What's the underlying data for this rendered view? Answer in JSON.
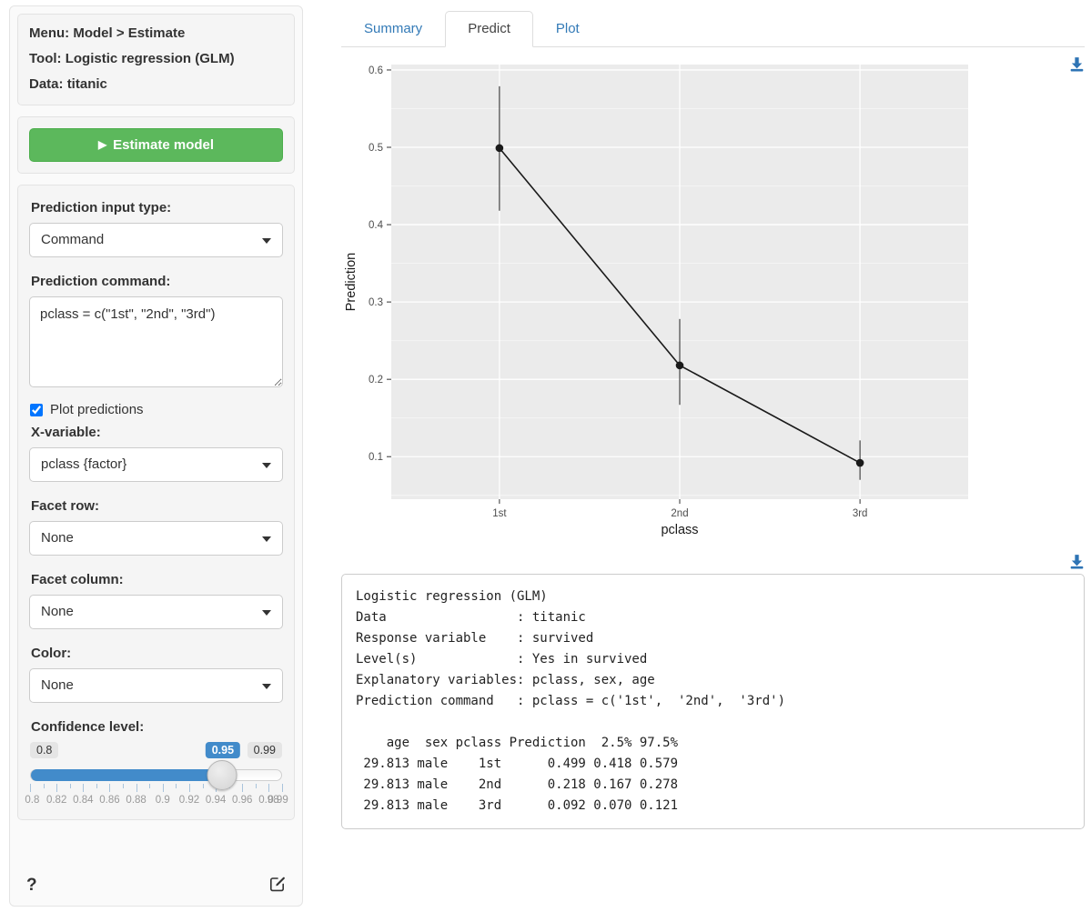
{
  "sidebar": {
    "info": [
      {
        "label": "Menu:",
        "value": "Model > Estimate"
      },
      {
        "label": "Tool:",
        "value": "Logistic regression (GLM)"
      },
      {
        "label": "Data:",
        "value": "titanic"
      }
    ],
    "estimate_button": {
      "label": "Estimate model",
      "icon": "play-icon"
    },
    "prediction_input_type": {
      "label": "Prediction input type:",
      "value": "Command"
    },
    "prediction_command": {
      "label": "Prediction command:",
      "value": "pclass = c(\"1st\", \"2nd\", \"3rd\")"
    },
    "plot_predictions": {
      "label": "Plot predictions",
      "checked": true
    },
    "x_variable": {
      "label": "X-variable:",
      "value": "pclass {factor}"
    },
    "facet_row": {
      "label": "Facet row:",
      "value": "None"
    },
    "facet_column": {
      "label": "Facet column:",
      "value": "None"
    },
    "color": {
      "label": "Color:",
      "value": "None"
    },
    "confidence": {
      "label": "Confidence level:",
      "min": "0.8",
      "max": "0.99",
      "value": "0.95",
      "tick_labels": [
        "0.8",
        "0.82",
        "0.84",
        "0.86",
        "0.88",
        "0.9",
        "0.92",
        "0.94",
        "0.96",
        "0.98",
        "0.99"
      ]
    },
    "help_label": "?"
  },
  "tabs": [
    {
      "label": "Summary"
    },
    {
      "label": "Predict"
    },
    {
      "label": "Plot"
    }
  ],
  "chart_data": {
    "type": "line",
    "x": [
      "1st",
      "2nd",
      "3rd"
    ],
    "series": [
      {
        "name": "Prediction",
        "values": [
          0.499,
          0.218,
          0.092
        ],
        "ci_low": [
          0.418,
          0.167,
          0.07
        ],
        "ci_high": [
          0.579,
          0.278,
          0.121
        ]
      }
    ],
    "title": "",
    "xlabel": "pclass",
    "ylabel": "Prediction",
    "ylim": [
      0.045,
      0.607
    ],
    "yticks": [
      0.1,
      0.2,
      0.3,
      0.4,
      0.5,
      0.6
    ],
    "yminor": [
      0.05,
      0.15,
      0.25,
      0.35,
      0.45,
      0.55
    ],
    "grid": true,
    "legend": "none",
    "panel_bg": "#EBEBEB",
    "grid_major": "#FFFFFF",
    "grid_minor": "#F6F6F6",
    "line_color": "#1a1a1a",
    "point_color": "#1a1a1a",
    "errorbar_color": "#333333",
    "tick_label_color": "#4d4d4d",
    "axis_title_color": "#1a1a1a"
  },
  "colors": {
    "accent_blue": "#428bca",
    "link_blue": "#337ab7",
    "button_green": "#5cb85c",
    "download_blue": "#2e74b5"
  },
  "output": {
    "text": "Logistic regression (GLM)\nData                 : titanic\nResponse variable    : survived\nLevel(s)             : Yes in survived\nExplanatory variables: pclass, sex, age\nPrediction command   : pclass = c('1st',  '2nd',  '3rd')\n\n    age  sex pclass Prediction  2.5% 97.5%\n 29.813 male    1st      0.499 0.418 0.579\n 29.813 male    2nd      0.218 0.167 0.278\n 29.813 male    3rd      0.092 0.070 0.121"
  }
}
